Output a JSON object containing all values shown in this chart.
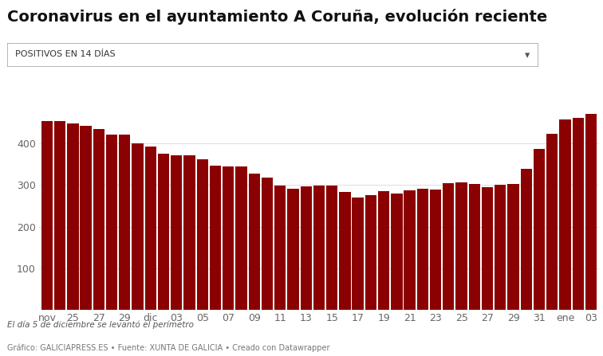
{
  "title": "Coronavirus en el ayuntamiento A Coruña, evolución reciente",
  "subtitle_box": "POSITIVOS EN 14 DÍAS",
  "bar_color": "#8B0000",
  "background_color": "#ffffff",
  "footnote1": "El día 5 de diciembre se levantó el perímetro",
  "footnote2": "Gráfico: GALICIAPRESS.ES • Fuente: XUNTA DE GALICIA • Creado con Datawrapper",
  "x_labels": [
    "nov",
    "25",
    "27",
    "29",
    "dic",
    "03",
    "05",
    "07",
    "09",
    "11",
    "13",
    "15",
    "17",
    "19",
    "21",
    "23",
    "25",
    "27",
    "29",
    "31",
    "ene",
    "03"
  ],
  "x_tick_positions": [
    0,
    2,
    4,
    6,
    8,
    10,
    12,
    14,
    16,
    18,
    20,
    22,
    24,
    26,
    28,
    30,
    32,
    34,
    36,
    38,
    40,
    42
  ],
  "values": [
    455,
    455,
    448,
    442,
    435,
    422,
    421,
    400,
    393,
    375,
    372,
    371,
    363,
    347,
    344,
    344,
    328,
    318,
    299,
    292,
    297,
    298,
    298,
    283,
    270,
    276,
    286,
    280,
    288,
    291,
    290,
    304,
    306,
    302,
    295,
    300,
    302,
    340,
    387,
    424,
    458,
    461,
    472
  ],
  "ylim": [
    0,
    480
  ],
  "yticks": [
    100,
    200,
    300,
    400
  ],
  "grid_color": "#dddddd",
  "title_fontsize": 14,
  "label_fontsize": 9,
  "footnote_fontsize": 7.5,
  "bar_width": 0.88
}
